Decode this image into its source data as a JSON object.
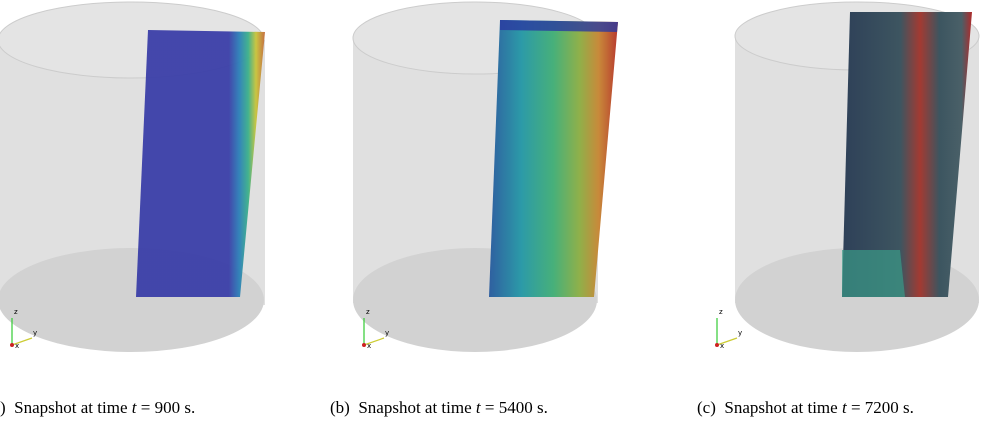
{
  "panels": [
    {
      "axes": {
        "z": "z",
        "y": "y",
        "x": "x"
      },
      "caption": {
        "label": ")",
        "text": "Snapshot at time",
        "variable": "t",
        "rest": "= 900 s."
      }
    },
    {
      "axes": {
        "z": "z",
        "y": "y",
        "x": "x"
      },
      "caption": {
        "label": "(b)",
        "text": "Snapshot at time",
        "variable": "t",
        "rest": "= 5400 s."
      }
    },
    {
      "axes": {
        "z": "z",
        "y": "y",
        "x": "x"
      },
      "caption": {
        "label": "(c)",
        "text": "Snapshot at time",
        "variable": "t",
        "rest": "= 7200 s."
      }
    }
  ]
}
